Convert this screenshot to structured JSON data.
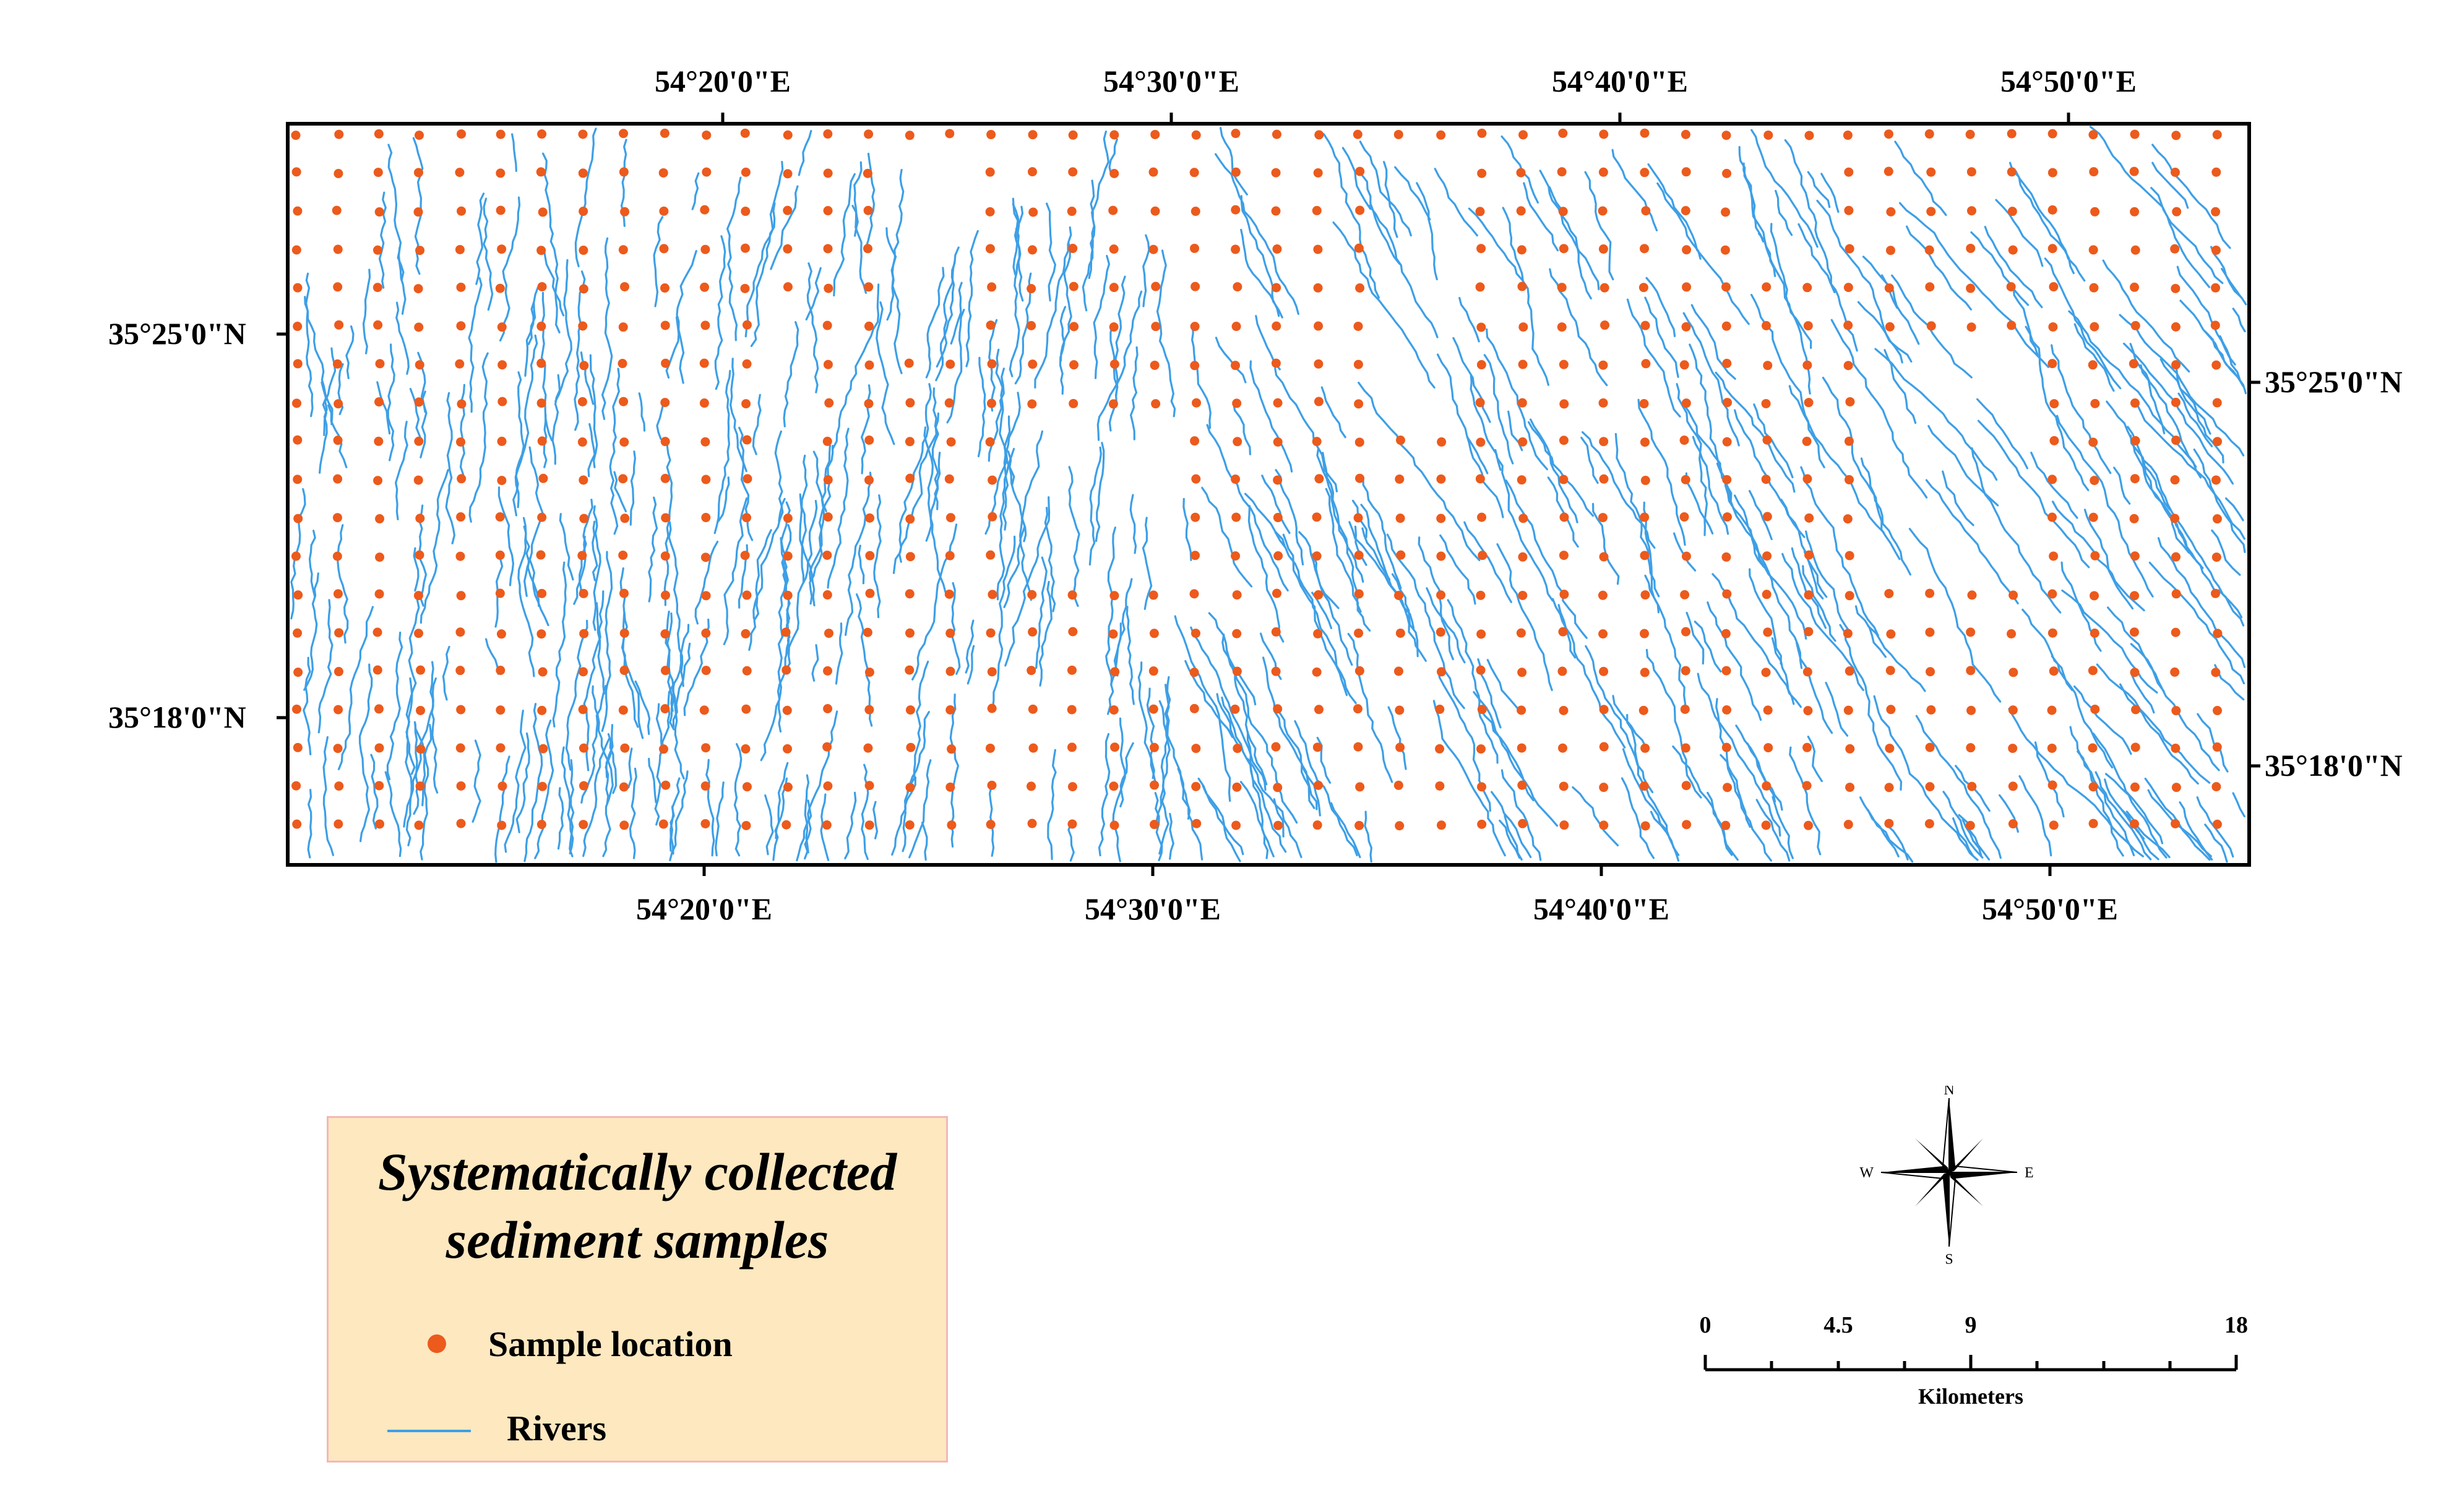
{
  "map": {
    "top_longitude_labels": [
      "54°20'0\"E",
      "54°30'0\"E",
      "54°40'0\"E",
      "54°50'0\"E"
    ],
    "bottom_longitude_labels": [
      "54°20'0\"E",
      "54°30'0\"E",
      "54°40'0\"E",
      "54°50'0\"E"
    ],
    "left_latitude_labels": [
      "35°25'0\"N",
      "35°18'0\"N"
    ],
    "right_latitude_labels": [
      "35°25'0\"N",
      "35°18'0\"N"
    ],
    "sample_color": "#ec5a1c",
    "river_color": "#3d9fe6",
    "frame_color": "#000000"
  },
  "legend": {
    "title_line1": "Systematically collected",
    "title_line2": "sediment samples",
    "items": [
      {
        "label": "Sample location",
        "symbol": "orange-dot"
      },
      {
        "label": "Rivers",
        "symbol": "blue-line"
      }
    ],
    "background": "#fde8c0",
    "border": "#f2b7b7"
  },
  "north_arrow": {
    "n": "N",
    "s": "S",
    "e": "E",
    "w": "W"
  },
  "scale_bar": {
    "ticks": [
      "0",
      "4.5",
      "9",
      "18"
    ],
    "unit": "Kilometers"
  }
}
